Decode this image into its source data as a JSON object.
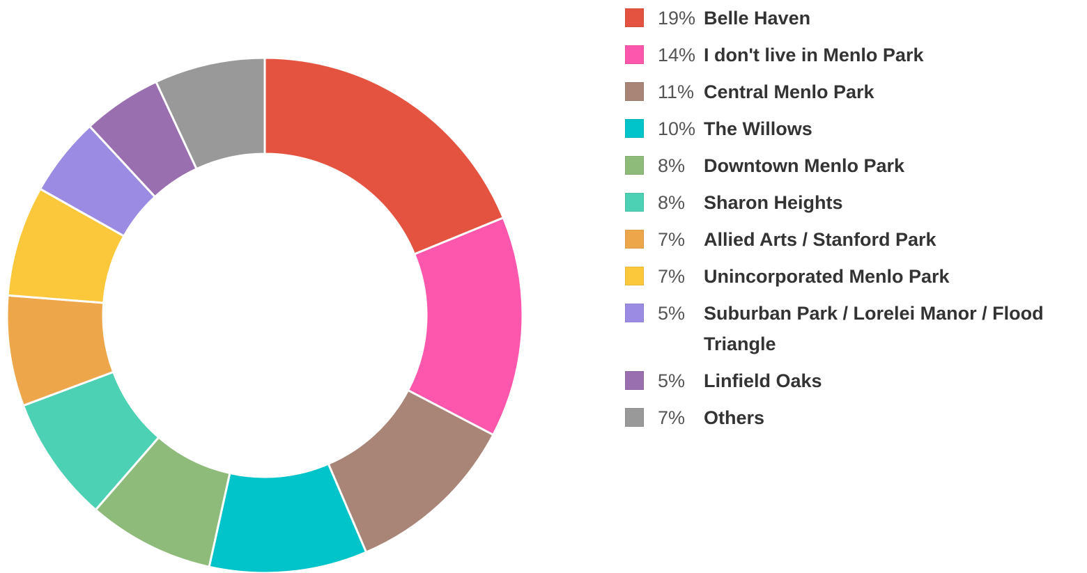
{
  "chart_data": {
    "type": "pie",
    "donut": true,
    "legend_position": "right",
    "slices": [
      {
        "label": "Belle Haven",
        "percent": "19%",
        "value": 19,
        "color": "#e3533f"
      },
      {
        "label": "I don't live in Menlo Park",
        "percent": "14%",
        "value": 14,
        "color": "#fc56ad"
      },
      {
        "label": "Central Menlo Park",
        "percent": "11%",
        "value": 11,
        "color": "#a88576"
      },
      {
        "label": "The Willows",
        "percent": "10%",
        "value": 10,
        "color": "#00c4c9"
      },
      {
        "label": "Downtown Menlo Park",
        "percent": "8%",
        "value": 8,
        "color": "#8fbb7a"
      },
      {
        "label": "Sharon Heights",
        "percent": "8%",
        "value": 8,
        "color": "#4dd1b4"
      },
      {
        "label": "Allied Arts / Stanford Park",
        "percent": "7%",
        "value": 7,
        "color": "#eda74a"
      },
      {
        "label": "Unincorporated Menlo Park",
        "percent": "7%",
        "value": 7,
        "color": "#fbc83c"
      },
      {
        "label": "Suburban Park / Lorelei Manor / Flood Triangle",
        "percent": "5%",
        "value": 5,
        "color": "#9b8be3"
      },
      {
        "label": "Linfield Oaks",
        "percent": "5%",
        "value": 5,
        "color": "#9a6fb0"
      },
      {
        "label": "Others",
        "percent": "7%",
        "value": 7,
        "color": "#999999"
      }
    ]
  }
}
